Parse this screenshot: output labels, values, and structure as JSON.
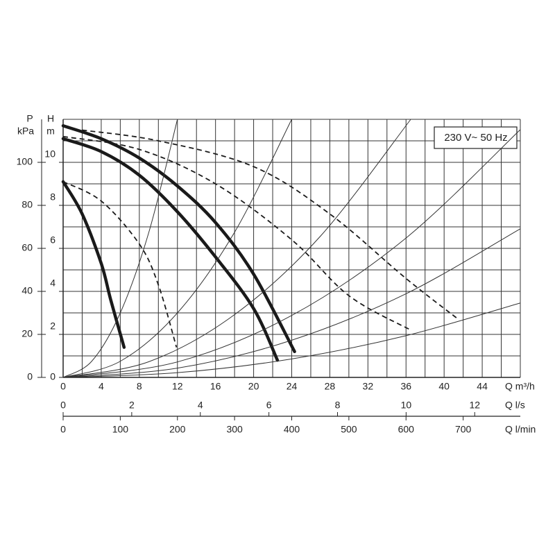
{
  "chart_data": {
    "type": "line",
    "box_label": "230 V~ 50 Hz",
    "ylabel": "H",
    "yunit": "m",
    "ylim": [
      0,
      12
    ],
    "yticks": [
      0,
      2,
      4,
      6,
      8,
      10
    ],
    "y2label": "P",
    "y2unit": "kPa",
    "y2lim": [
      0,
      120
    ],
    "y2ticks": [
      0,
      20,
      40,
      60,
      80,
      100
    ],
    "xlabel": "Q m³/h",
    "xlim": [
      0,
      48
    ],
    "xticks": [
      0,
      4,
      8,
      12,
      16,
      20,
      24,
      28,
      32,
      36,
      40,
      44
    ],
    "x2label": "Q l/s",
    "x2lim": [
      0,
      13.33
    ],
    "x2ticks": [
      0,
      2,
      4,
      6,
      8,
      10,
      12
    ],
    "x3label": "Q l/min",
    "x3lim": [
      0,
      800
    ],
    "x3ticks": [
      0,
      100,
      200,
      300,
      400,
      500,
      600,
      700
    ],
    "grid": true,
    "x_gridlines": [
      0,
      2,
      4,
      6,
      8,
      10,
      12,
      14,
      16,
      18,
      20,
      22,
      24,
      26,
      28,
      30,
      32,
      34,
      36,
      38,
      40,
      42,
      44,
      46,
      48
    ],
    "y_gridlines": [
      0,
      1,
      2,
      3,
      4,
      5,
      6,
      7,
      8,
      9,
      10,
      11,
      12
    ],
    "series": [
      {
        "style": "solid",
        "color": "#1a1a1a",
        "x": [
          0,
          2,
          4,
          5,
          6.4
        ],
        "values": [
          9.1,
          7.6,
          5.3,
          3.6,
          1.4
        ]
      },
      {
        "style": "solid",
        "color": "#1a1a1a",
        "x": [
          0,
          4,
          8,
          12,
          16,
          20,
          22.5
        ],
        "values": [
          11.1,
          10.5,
          9.4,
          7.7,
          5.6,
          3.2,
          0.8
        ]
      },
      {
        "style": "solid",
        "color": "#1a1a1a",
        "x": [
          0,
          4,
          8,
          12,
          16,
          20,
          24.3
        ],
        "values": [
          11.7,
          11.1,
          10.2,
          8.9,
          7.2,
          4.8,
          1.2
        ]
      },
      {
        "style": "dashed",
        "color": "#1a1a1a",
        "x": [
          0,
          4,
          8,
          10,
          11.9
        ],
        "values": [
          9.1,
          8.2,
          6.2,
          4.3,
          1.4
        ]
      },
      {
        "style": "dashed",
        "color": "#1a1a1a",
        "x": [
          0,
          8,
          16,
          24,
          30,
          36.5
        ],
        "values": [
          11.2,
          10.6,
          9.0,
          6.4,
          3.8,
          2.2
        ]
      },
      {
        "style": "dashed",
        "color": "#1a1a1a",
        "x": [
          2,
          10,
          20,
          28,
          36,
          41.5
        ],
        "values": [
          11.5,
          11.0,
          9.8,
          7.6,
          4.6,
          2.7
        ]
      },
      {
        "style": "thin",
        "color": "#333333",
        "x": [
          0,
          3,
          6,
          9,
          12
        ],
        "values": [
          0,
          0.75,
          3,
          6.75,
          12
        ]
      },
      {
        "style": "thin",
        "color": "#333333",
        "x": [
          0,
          6,
          12,
          18,
          24
        ],
        "values": [
          0,
          0.75,
          3,
          6.75,
          12
        ]
      },
      {
        "style": "thin",
        "color": "#333333",
        "x": [
          0,
          9,
          18,
          27,
          36.5
        ],
        "values": [
          0,
          0.73,
          2.92,
          6.56,
          12
        ]
      },
      {
        "style": "thin",
        "color": "#333333",
        "x": [
          0,
          12,
          24,
          36,
          48
        ],
        "values": [
          0,
          0.72,
          2.88,
          6.48,
          11.52
        ]
      },
      {
        "style": "thin",
        "color": "#333333",
        "x": [
          0,
          12,
          24,
          36,
          48
        ],
        "values": [
          0,
          0.43,
          1.73,
          3.89,
          6.91
        ]
      },
      {
        "style": "thin",
        "color": "#333333",
        "x": [
          0,
          12,
          24,
          36,
          48
        ],
        "values": [
          0,
          0.22,
          0.86,
          1.94,
          3.46
        ]
      }
    ]
  }
}
